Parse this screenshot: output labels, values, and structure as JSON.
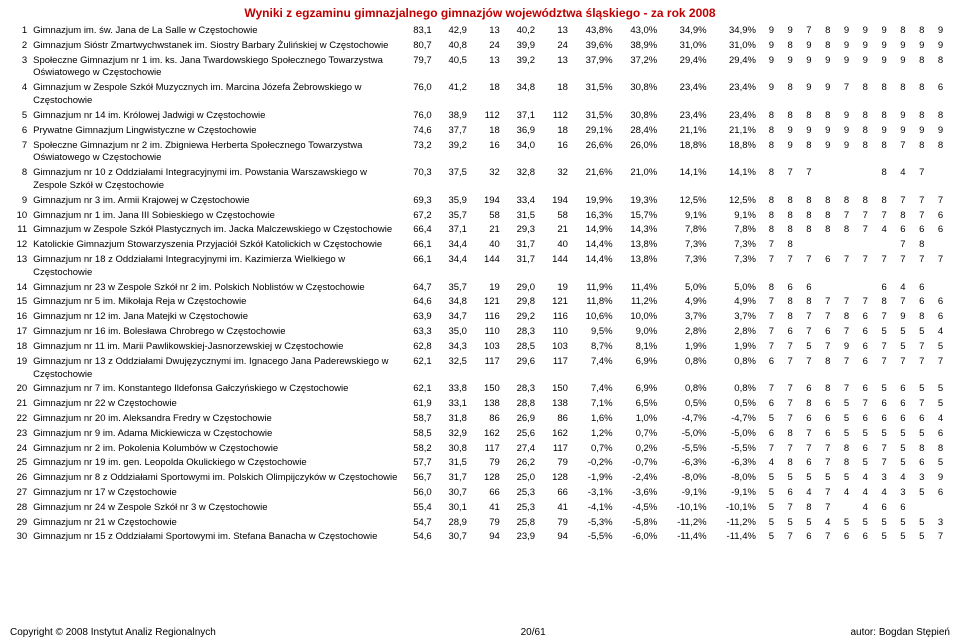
{
  "title": "Wyniki z egzaminu gimnazjalnego gimnazjów województwa śląskiego - za rok 2008",
  "footer_left": "Copyright © 2008 Instytut Analiz Regionalnych",
  "footer_center": "20/61",
  "footer_right": "autor: Bogdan Stępień",
  "rows": [
    {
      "n": "1",
      "name": "Gimnazjum im. św. Jana de La Salle w Częstochowie",
      "c": [
        "83,1",
        "42,9",
        "13",
        "40,2",
        "13",
        "43,8%",
        "43,0%",
        "34,9%",
        "34,9%"
      ],
      "s": [
        "9",
        "9",
        "7",
        "8",
        "9",
        "9",
        "9",
        "8",
        "8",
        "9"
      ]
    },
    {
      "n": "2",
      "name": "Gimnazjum Sióstr Zmartwychwstanek im. Siostry Barbary Żulińskiej w Częstochowie",
      "c": [
        "80,7",
        "40,8",
        "24",
        "39,9",
        "24",
        "39,6%",
        "38,9%",
        "31,0%",
        "31,0%"
      ],
      "s": [
        "9",
        "8",
        "9",
        "8",
        "9",
        "9",
        "9",
        "9",
        "9",
        "9"
      ]
    },
    {
      "n": "3",
      "name": "Społeczne Gimnazjum nr 1 im. ks. Jana Twardowskiego Społecznego Towarzystwa Oświatowego w Częstochowie",
      "c": [
        "79,7",
        "40,5",
        "13",
        "39,2",
        "13",
        "37,9%",
        "37,2%",
        "29,4%",
        "29,4%"
      ],
      "s": [
        "9",
        "9",
        "9",
        "9",
        "9",
        "9",
        "9",
        "9",
        "8",
        "8"
      ]
    },
    {
      "n": "4",
      "name": "Gimnazjum w Zespole Szkół Muzycznych im. Marcina Józefa Żebrowskiego w Częstochowie",
      "c": [
        "76,0",
        "41,2",
        "18",
        "34,8",
        "18",
        "31,5%",
        "30,8%",
        "23,4%",
        "23,4%"
      ],
      "s": [
        "9",
        "8",
        "9",
        "9",
        "7",
        "8",
        "8",
        "8",
        "8",
        "6"
      ]
    },
    {
      "n": "5",
      "name": "Gimnazjum nr 14 im. Królowej Jadwigi w Częstochowie",
      "c": [
        "76,0",
        "38,9",
        "112",
        "37,1",
        "112",
        "31,5%",
        "30,8%",
        "23,4%",
        "23,4%"
      ],
      "s": [
        "8",
        "8",
        "8",
        "8",
        "9",
        "8",
        "8",
        "9",
        "8",
        "8"
      ]
    },
    {
      "n": "6",
      "name": "Prywatne Gimnazjum Lingwistyczne w Częstochowie",
      "c": [
        "74,6",
        "37,7",
        "18",
        "36,9",
        "18",
        "29,1%",
        "28,4%",
        "21,1%",
        "21,1%"
      ],
      "s": [
        "8",
        "9",
        "9",
        "9",
        "9",
        "8",
        "9",
        "9",
        "9",
        "9"
      ]
    },
    {
      "n": "7",
      "name": "Społeczne Gimnazjum nr 2 im. Zbigniewa Herberta Społecznego Towarzystwa Oświatowego w Częstochowie",
      "c": [
        "73,2",
        "39,2",
        "16",
        "34,0",
        "16",
        "26,6%",
        "26,0%",
        "18,8%",
        "18,8%"
      ],
      "s": [
        "8",
        "9",
        "8",
        "9",
        "9",
        "8",
        "8",
        "7",
        "8",
        "8"
      ]
    },
    {
      "n": "8",
      "name": "Gimnazjum nr 10 z Oddziałami Integracyjnymi im. Powstania Warszawskiego w Zespole Szkół w Częstochowie",
      "c": [
        "70,3",
        "37,5",
        "32",
        "32,8",
        "32",
        "21,6%",
        "21,0%",
        "14,1%",
        "14,1%"
      ],
      "s": [
        "8",
        "7",
        "7",
        "",
        "",
        "",
        "8",
        "4",
        "7",
        ""
      ]
    },
    {
      "n": "9",
      "name": "Gimnazjum nr 3 im. Armii Krajowej w Częstochowie",
      "c": [
        "69,3",
        "35,9",
        "194",
        "33,4",
        "194",
        "19,9%",
        "19,3%",
        "12,5%",
        "12,5%"
      ],
      "s": [
        "8",
        "8",
        "8",
        "8",
        "8",
        "8",
        "8",
        "7",
        "7",
        "7"
      ]
    },
    {
      "n": "10",
      "name": "Gimnazjum nr 1 im. Jana III Sobieskiego w Częstochowie",
      "c": [
        "67,2",
        "35,7",
        "58",
        "31,5",
        "58",
        "16,3%",
        "15,7%",
        "9,1%",
        "9,1%"
      ],
      "s": [
        "8",
        "8",
        "8",
        "8",
        "7",
        "7",
        "7",
        "8",
        "7",
        "6"
      ]
    },
    {
      "n": "11",
      "name": "Gimnazjum w Zespole Szkół Plastycznych im. Jacka Malczewskiego w Częstochowie",
      "c": [
        "66,4",
        "37,1",
        "21",
        "29,3",
        "21",
        "14,9%",
        "14,3%",
        "7,8%",
        "7,8%"
      ],
      "s": [
        "8",
        "8",
        "8",
        "8",
        "8",
        "7",
        "4",
        "6",
        "6",
        "6"
      ]
    },
    {
      "n": "12",
      "name": "Katolickie Gimnazjum Stowarzyszenia Przyjaciół Szkół Katolickich w Częstochowie",
      "c": [
        "66,1",
        "34,4",
        "40",
        "31,7",
        "40",
        "14,4%",
        "13,8%",
        "7,3%",
        "7,3%"
      ],
      "s": [
        "7",
        "8",
        "",
        "",
        "",
        "",
        "",
        "7",
        "8",
        ""
      ]
    },
    {
      "n": "13",
      "name": "Gimnazjum nr 18 z Oddziałami Integracyjnymi im. Kazimierza Wielkiego w Częstochowie",
      "c": [
        "66,1",
        "34,4",
        "144",
        "31,7",
        "144",
        "14,4%",
        "13,8%",
        "7,3%",
        "7,3%"
      ],
      "s": [
        "7",
        "7",
        "7",
        "6",
        "7",
        "7",
        "7",
        "7",
        "7",
        "7"
      ]
    },
    {
      "n": "14",
      "name": "Gimnazjum nr 23 w Zespole Szkół nr 2 im. Polskich Noblistów w Częstochowie",
      "c": [
        "64,7",
        "35,7",
        "19",
        "29,0",
        "19",
        "11,9%",
        "11,4%",
        "5,0%",
        "5,0%"
      ],
      "s": [
        "8",
        "6",
        "6",
        "",
        "",
        "",
        "6",
        "4",
        "6",
        ""
      ]
    },
    {
      "n": "15",
      "name": "Gimnazjum nr 5 im. Mikołaja Reja w Częstochowie",
      "c": [
        "64,6",
        "34,8",
        "121",
        "29,8",
        "121",
        "11,8%",
        "11,2%",
        "4,9%",
        "4,9%"
      ],
      "s": [
        "7",
        "8",
        "8",
        "7",
        "7",
        "7",
        "8",
        "7",
        "6",
        "6"
      ]
    },
    {
      "n": "16",
      "name": "Gimnazjum nr 12 im. Jana Matejki w Częstochowie",
      "c": [
        "63,9",
        "34,7",
        "116",
        "29,2",
        "116",
        "10,6%",
        "10,0%",
        "3,7%",
        "3,7%"
      ],
      "s": [
        "7",
        "8",
        "7",
        "7",
        "8",
        "6",
        "7",
        "9",
        "8",
        "6"
      ]
    },
    {
      "n": "17",
      "name": "Gimnazjum nr 16 im. Bolesława Chrobrego w Częstochowie",
      "c": [
        "63,3",
        "35,0",
        "110",
        "28,3",
        "110",
        "9,5%",
        "9,0%",
        "2,8%",
        "2,8%"
      ],
      "s": [
        "7",
        "6",
        "7",
        "6",
        "7",
        "6",
        "5",
        "5",
        "5",
        "4"
      ]
    },
    {
      "n": "18",
      "name": "Gimnazjum nr 11 im. Marii Pawlikowskiej-Jasnorzewskiej w Częstochowie",
      "c": [
        "62,8",
        "34,3",
        "103",
        "28,5",
        "103",
        "8,7%",
        "8,1%",
        "1,9%",
        "1,9%"
      ],
      "s": [
        "7",
        "7",
        "5",
        "7",
        "9",
        "6",
        "7",
        "5",
        "7",
        "5"
      ]
    },
    {
      "n": "19",
      "name": "Gimnazjum nr 13 z Oddziałami Dwujęzycznymi im. Ignacego Jana Paderewskiego w Częstochowie",
      "c": [
        "62,1",
        "32,5",
        "117",
        "29,6",
        "117",
        "7,4%",
        "6,9%",
        "0,8%",
        "0,8%"
      ],
      "s": [
        "6",
        "7",
        "7",
        "8",
        "7",
        "6",
        "7",
        "7",
        "7",
        "7"
      ]
    },
    {
      "n": "20",
      "name": "Gimnazjum nr 7 im. Konstantego Ildefonsa Gałczyńskiego w Częstochowie",
      "c": [
        "62,1",
        "33,8",
        "150",
        "28,3",
        "150",
        "7,4%",
        "6,9%",
        "0,8%",
        "0,8%"
      ],
      "s": [
        "7",
        "7",
        "6",
        "8",
        "7",
        "6",
        "5",
        "6",
        "5",
        "5"
      ]
    },
    {
      "n": "21",
      "name": "Gimnazjum nr 22 w Częstochowie",
      "c": [
        "61,9",
        "33,1",
        "138",
        "28,8",
        "138",
        "7,1%",
        "6,5%",
        "0,5%",
        "0,5%"
      ],
      "s": [
        "6",
        "7",
        "8",
        "6",
        "5",
        "7",
        "6",
        "6",
        "7",
        "5"
      ]
    },
    {
      "n": "22",
      "name": "Gimnazjum nr 20 im. Aleksandra Fredry w Częstochowie",
      "c": [
        "58,7",
        "31,8",
        "86",
        "26,9",
        "86",
        "1,6%",
        "1,0%",
        "-4,7%",
        "-4,7%"
      ],
      "s": [
        "5",
        "7",
        "6",
        "6",
        "5",
        "6",
        "6",
        "6",
        "6",
        "4"
      ]
    },
    {
      "n": "23",
      "name": "Gimnazjum nr 9 im. Adama Mickiewicza w Częstochowie",
      "c": [
        "58,5",
        "32,9",
        "162",
        "25,6",
        "162",
        "1,2%",
        "0,7%",
        "-5,0%",
        "-5,0%"
      ],
      "s": [
        "6",
        "8",
        "7",
        "6",
        "5",
        "5",
        "5",
        "5",
        "5",
        "6"
      ]
    },
    {
      "n": "24",
      "name": "Gimnazjum nr 2 im. Pokolenia Kolumbów w Częstochowie",
      "c": [
        "58,2",
        "30,8",
        "117",
        "27,4",
        "117",
        "0,7%",
        "0,2%",
        "-5,5%",
        "-5,5%"
      ],
      "s": [
        "7",
        "7",
        "7",
        "7",
        "8",
        "6",
        "7",
        "5",
        "8",
        "8"
      ]
    },
    {
      "n": "25",
      "name": "Gimnazjum nr 19 im. gen. Leopolda Okulickiego w Częstochowie",
      "c": [
        "57,7",
        "31,5",
        "79",
        "26,2",
        "79",
        "-0,2%",
        "-0,7%",
        "-6,3%",
        "-6,3%"
      ],
      "s": [
        "4",
        "8",
        "6",
        "7",
        "8",
        "5",
        "7",
        "5",
        "6",
        "5"
      ]
    },
    {
      "n": "26",
      "name": "Gimnazjum nr 8 z Oddziałami Sportowymi im. Polskich Olimpijczyków w Częstochowie",
      "c": [
        "56,7",
        "31,7",
        "128",
        "25,0",
        "128",
        "-1,9%",
        "-2,4%",
        "-8,0%",
        "-8,0%"
      ],
      "s": [
        "5",
        "5",
        "5",
        "5",
        "5",
        "4",
        "3",
        "4",
        "3",
        "9"
      ]
    },
    {
      "n": "27",
      "name": "Gimnazjum nr 17 w Częstochowie",
      "c": [
        "56,0",
        "30,7",
        "66",
        "25,3",
        "66",
        "-3,1%",
        "-3,6%",
        "-9,1%",
        "-9,1%"
      ],
      "s": [
        "5",
        "6",
        "4",
        "7",
        "4",
        "4",
        "4",
        "3",
        "5",
        "6"
      ]
    },
    {
      "n": "28",
      "name": "Gimnazjum nr 24 w Zespole Szkół nr 3 w Częstochowie",
      "c": [
        "55,4",
        "30,1",
        "41",
        "25,3",
        "41",
        "-4,1%",
        "-4,5%",
        "-10,1%",
        "-10,1%"
      ],
      "s": [
        "5",
        "7",
        "8",
        "7",
        "",
        "4",
        "6",
        "6",
        "",
        ""
      ]
    },
    {
      "n": "29",
      "name": "Gimnazjum nr 21 w Częstochowie",
      "c": [
        "54,7",
        "28,9",
        "79",
        "25,8",
        "79",
        "-5,3%",
        "-5,8%",
        "-11,2%",
        "-11,2%"
      ],
      "s": [
        "5",
        "5",
        "5",
        "4",
        "5",
        "5",
        "5",
        "5",
        "5",
        "3"
      ]
    },
    {
      "n": "30",
      "name": "Gimnazjum nr 15 z Oddziałami Sportowymi im. Stefana Banacha w Częstochowie",
      "c": [
        "54,6",
        "30,7",
        "94",
        "23,9",
        "94",
        "-5,5%",
        "-6,0%",
        "-11,4%",
        "-11,4%"
      ],
      "s": [
        "5",
        "7",
        "6",
        "7",
        "6",
        "6",
        "5",
        "5",
        "5",
        "7"
      ]
    }
  ]
}
